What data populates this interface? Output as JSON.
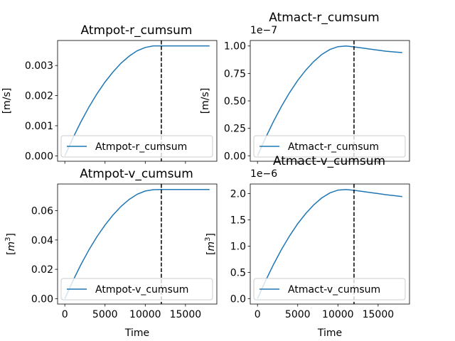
{
  "chart_data": [
    {
      "type": "line",
      "title": "Atmpot-r_cumsum",
      "xlabel": "",
      "ylabel": "[m/s]",
      "offset_label": "",
      "legend": "lower-right",
      "series": [
        {
          "name": "Atmpot-r_cumsum",
          "color": "#1f77b4",
          "x": [
            0,
            1000,
            2000,
            3000,
            4000,
            5000,
            6000,
            7000,
            8000,
            9000,
            10000,
            11000,
            12000,
            13000,
            14000,
            15000,
            16000,
            17000,
            18000
          ],
          "y": [
            0,
            0.00059,
            0.00113,
            0.00162,
            0.00206,
            0.00245,
            0.00279,
            0.00308,
            0.00331,
            0.00349,
            0.0036,
            0.00365,
            0.00365,
            0.00365,
            0.00365,
            0.00365,
            0.00365,
            0.00365,
            0.00365
          ]
        }
      ],
      "vline_x": 12000,
      "xlim": [
        -900,
        18900
      ],
      "ylim": [
        -0.00018,
        0.00383
      ],
      "yticks": [
        0,
        0.001,
        0.002,
        0.003
      ],
      "ytick_labels": [
        "0.000",
        "0.001",
        "0.002",
        "0.003"
      ],
      "xticks": [
        0,
        5000,
        10000,
        15000
      ],
      "xtick_labels": []
    },
    {
      "type": "line",
      "title": "Atmact-r_cumsum",
      "xlabel": "",
      "ylabel": "[m/s]",
      "offset_label": "1e−7",
      "legend": "lower-right",
      "series": [
        {
          "name": "Atmact-r_cumsum",
          "color": "#1f77b4",
          "x": [
            0,
            1000,
            2000,
            3000,
            4000,
            5000,
            6000,
            7000,
            8000,
            9000,
            10000,
            11000,
            12000,
            13000,
            14000,
            15000,
            16000,
            17000,
            18000
          ],
          "y": [
            0,
            0.163,
            0.314,
            0.452,
            0.576,
            0.686,
            0.78,
            0.859,
            0.923,
            0.968,
            0.994,
            1.0,
            0.992,
            0.982,
            0.972,
            0.962,
            0.952,
            0.946,
            0.94
          ]
        }
      ],
      "vline_x": 12000,
      "xlim": [
        -900,
        18900
      ],
      "ylim": [
        -0.05,
        1.05
      ],
      "yticks": [
        0,
        0.25,
        0.5,
        0.75,
        1.0
      ],
      "ytick_labels": [
        "0.00",
        "0.25",
        "0.50",
        "0.75",
        "1.00"
      ],
      "xticks": [
        0,
        5000,
        10000,
        15000
      ],
      "xtick_labels": []
    },
    {
      "type": "line",
      "title": "Atmpot-v_cumsum",
      "xlabel": "Time",
      "ylabel": "[m3]",
      "offset_label": "",
      "legend": "lower-right",
      "series": [
        {
          "name": "Atmpot-v_cumsum",
          "color": "#1f77b4",
          "x": [
            0,
            1000,
            2000,
            3000,
            4000,
            5000,
            6000,
            7000,
            8000,
            9000,
            10000,
            11000,
            12000,
            13000,
            14000,
            15000,
            16000,
            17000,
            18000
          ],
          "y": [
            0,
            0.0121,
            0.0232,
            0.0333,
            0.0423,
            0.0502,
            0.0571,
            0.063,
            0.0677,
            0.0712,
            0.0734,
            0.0743,
            0.0744,
            0.0744,
            0.0744,
            0.0744,
            0.0744,
            0.0744,
            0.0744
          ]
        }
      ],
      "vline_x": 12000,
      "xlim": [
        -900,
        18900
      ],
      "ylim": [
        -0.0037,
        0.0782
      ],
      "yticks": [
        0,
        0.02,
        0.04,
        0.06
      ],
      "ytick_labels": [
        "0.00",
        "0.02",
        "0.04",
        "0.06"
      ],
      "xticks": [
        0,
        5000,
        10000,
        15000
      ],
      "xtick_labels": [
        "0",
        "5000",
        "10000",
        "15000"
      ]
    },
    {
      "type": "line",
      "title": "Atmact-v_cumsum",
      "xlabel": "Time",
      "ylabel": "[m3]",
      "offset_label": "1e−6",
      "legend": "lower-right",
      "series": [
        {
          "name": "Atmact-v_cumsum",
          "color": "#1f77b4",
          "x": [
            0,
            1000,
            2000,
            3000,
            4000,
            5000,
            6000,
            7000,
            8000,
            9000,
            10000,
            11000,
            12000,
            13000,
            14000,
            15000,
            16000,
            17000,
            18000
          ],
          "y": [
            0,
            0.339,
            0.653,
            0.94,
            1.197,
            1.425,
            1.622,
            1.787,
            1.919,
            2.013,
            2.066,
            2.079,
            2.062,
            2.042,
            2.021,
            2.0,
            1.979,
            1.961,
            1.943
          ]
        }
      ],
      "vline_x": 12000,
      "xlim": [
        -900,
        18900
      ],
      "ylim": [
        -0.104,
        2.183
      ],
      "yticks": [
        0,
        0.5,
        1.0,
        1.5,
        2.0
      ],
      "ytick_labels": [
        "0.0",
        "0.5",
        "1.0",
        "1.5",
        "2.0"
      ],
      "xticks": [
        0,
        5000,
        10000,
        15000
      ],
      "xtick_labels": [
        "0",
        "5000",
        "10000",
        "15000"
      ]
    }
  ]
}
